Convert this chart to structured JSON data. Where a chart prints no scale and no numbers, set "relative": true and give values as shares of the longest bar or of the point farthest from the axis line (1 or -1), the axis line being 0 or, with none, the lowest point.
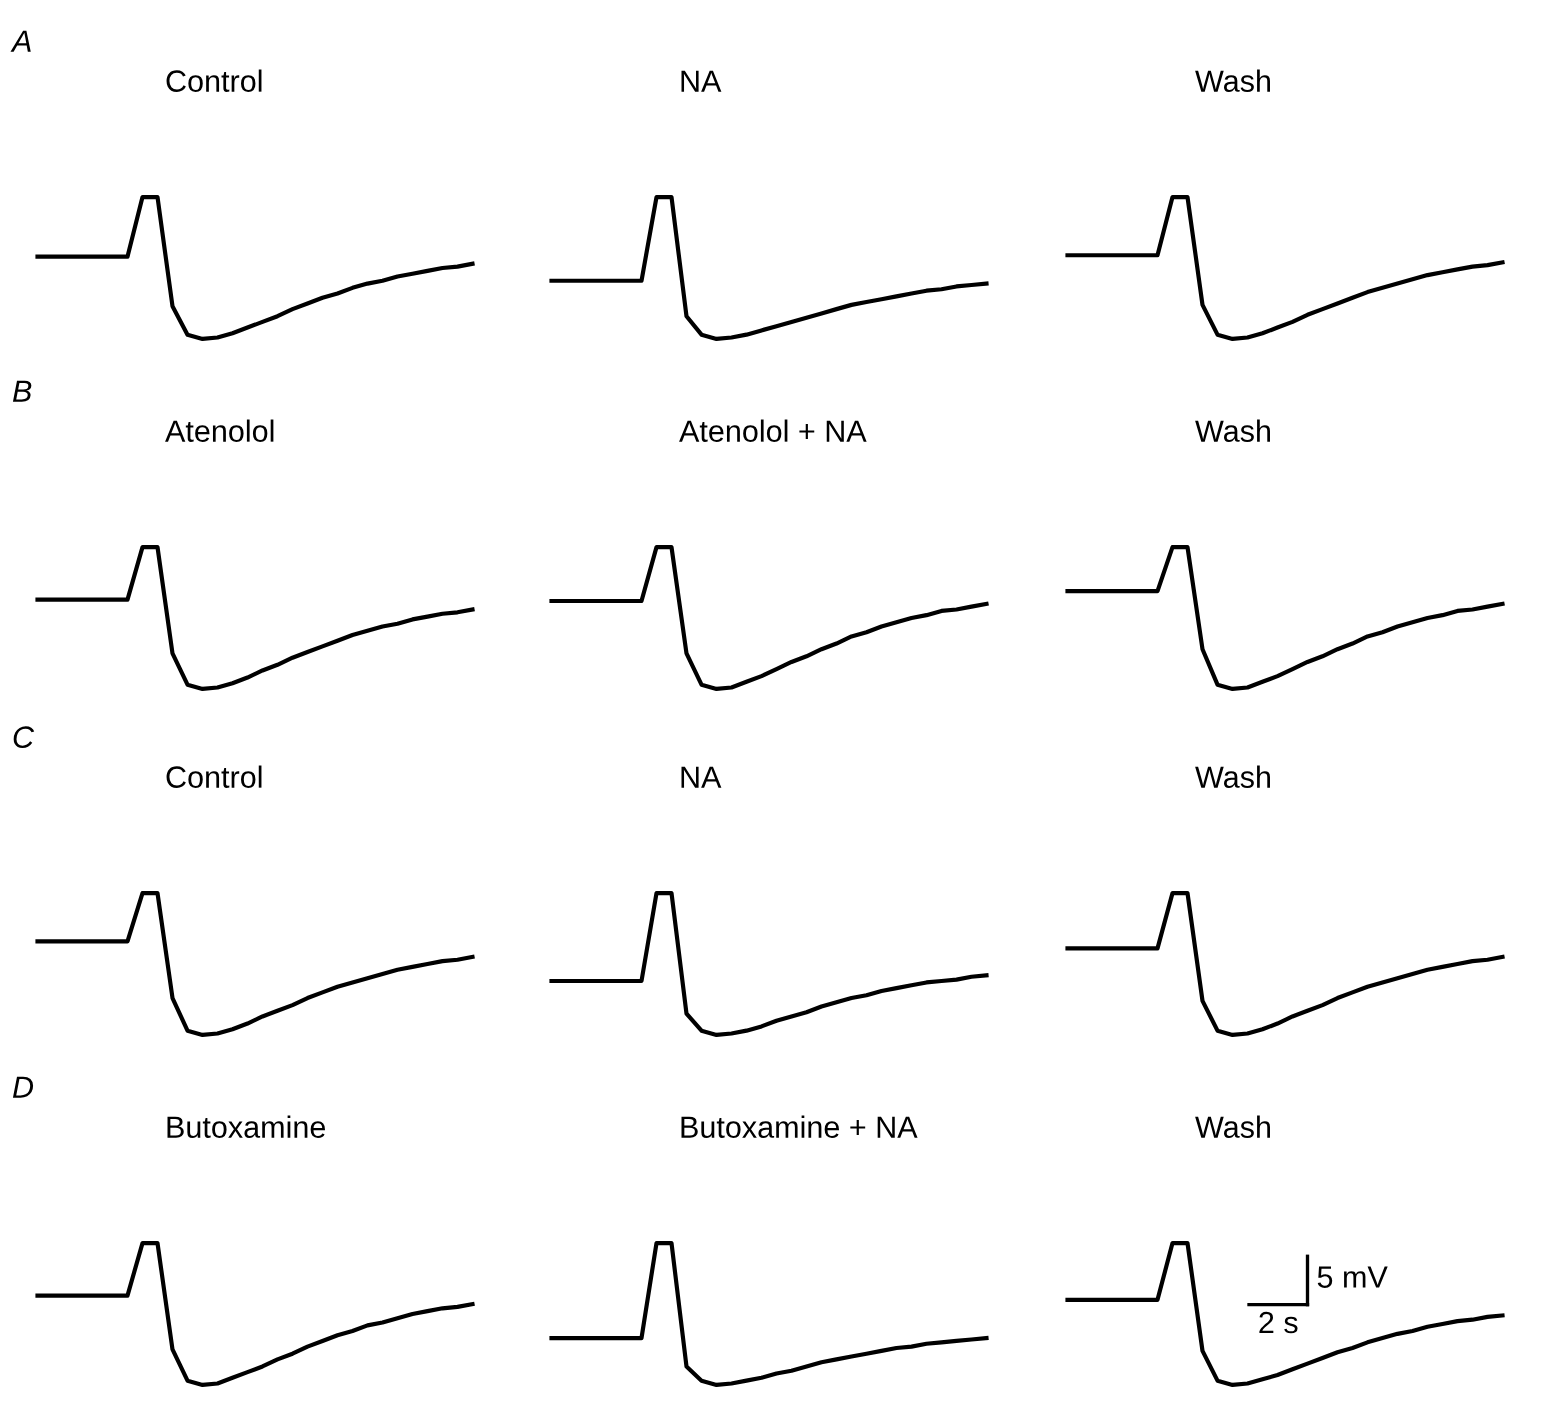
{
  "chart_data": [
    {
      "type": "line",
      "title": "Control",
      "annotations": [
        "A"
      ],
      "relative": true,
      "categories": [
        null,
        null,
        null,
        null,
        null,
        null,
        null,
        null,
        null,
        null,
        null,
        null,
        null,
        null,
        null,
        null,
        null,
        null,
        null,
        null,
        null,
        null,
        null,
        null,
        null,
        null,
        null,
        null,
        null,
        null
      ],
      "series": [
        {
          "color": "#000000",
          "values": [
            0.58,
            0.58,
            0.58,
            0.58,
            0.58,
            0.58,
            0.58,
            1,
            1,
            0.23,
            0.03,
            0,
            0.01,
            0.04,
            0.08,
            0.12,
            0.16,
            0.21,
            0.25,
            0.29,
            0.32,
            0.36,
            0.39,
            0.41,
            0.44,
            0.46,
            0.48,
            0.5,
            0.51,
            0.53
          ]
        }
      ]
    },
    {
      "type": "line",
      "title": "NA",
      "relative": true,
      "categories": [
        null,
        null,
        null,
        null,
        null,
        null,
        null,
        null,
        null,
        null,
        null,
        null,
        null,
        null,
        null,
        null,
        null,
        null,
        null,
        null,
        null,
        null,
        null,
        null,
        null,
        null,
        null,
        null,
        null,
        null
      ],
      "series": [
        {
          "color": "#000000",
          "values": [
            0.41,
            0.41,
            0.41,
            0.41,
            0.41,
            0.41,
            0.41,
            1,
            1,
            0.16,
            0.03,
            0,
            0.01,
            0.03,
            0.06,
            0.09,
            0.12,
            0.15,
            0.18,
            0.21,
            0.24,
            0.26,
            0.28,
            0.3,
            0.32,
            0.34,
            0.35,
            0.37,
            0.38,
            0.39
          ]
        }
      ]
    },
    {
      "type": "line",
      "title": "Wash",
      "relative": true,
      "categories": [
        null,
        null,
        null,
        null,
        null,
        null,
        null,
        null,
        null,
        null,
        null,
        null,
        null,
        null,
        null,
        null,
        null,
        null,
        null,
        null,
        null,
        null,
        null,
        null,
        null,
        null,
        null,
        null,
        null,
        null
      ],
      "series": [
        {
          "color": "#000000",
          "values": [
            0.59,
            0.59,
            0.59,
            0.59,
            0.59,
            0.59,
            0.59,
            1,
            1,
            0.24,
            0.03,
            0,
            0.01,
            0.04,
            0.08,
            0.12,
            0.17,
            0.21,
            0.25,
            0.29,
            0.33,
            0.36,
            0.39,
            0.42,
            0.45,
            0.47,
            0.49,
            0.51,
            0.52,
            0.54
          ]
        }
      ]
    },
    {
      "type": "line",
      "title": "Atenolol",
      "annotations": [
        "B"
      ],
      "relative": true,
      "categories": [
        null,
        null,
        null,
        null,
        null,
        null,
        null,
        null,
        null,
        null,
        null,
        null,
        null,
        null,
        null,
        null,
        null,
        null,
        null,
        null,
        null,
        null,
        null,
        null,
        null,
        null,
        null,
        null,
        null,
        null
      ],
      "series": [
        {
          "color": "#000000",
          "values": [
            0.63,
            0.63,
            0.63,
            0.63,
            0.63,
            0.63,
            0.63,
            1,
            1,
            0.25,
            0.03,
            0,
            0.01,
            0.04,
            0.08,
            0.13,
            0.17,
            0.22,
            0.26,
            0.3,
            0.34,
            0.38,
            0.41,
            0.44,
            0.46,
            0.49,
            0.51,
            0.53,
            0.54,
            0.56
          ]
        }
      ]
    },
    {
      "type": "line",
      "title": "Atenolol + NA",
      "relative": true,
      "categories": [
        null,
        null,
        null,
        null,
        null,
        null,
        null,
        null,
        null,
        null,
        null,
        null,
        null,
        null,
        null,
        null,
        null,
        null,
        null,
        null,
        null,
        null,
        null,
        null,
        null,
        null,
        null,
        null,
        null,
        null
      ],
      "series": [
        {
          "color": "#000000",
          "values": [
            0.62,
            0.62,
            0.62,
            0.62,
            0.62,
            0.62,
            0.62,
            1,
            1,
            0.25,
            0.03,
            0,
            0.01,
            0.05,
            0.09,
            0.14,
            0.19,
            0.23,
            0.28,
            0.32,
            0.37,
            0.4,
            0.44,
            0.47,
            0.5,
            0.52,
            0.55,
            0.56,
            0.58,
            0.6
          ]
        }
      ]
    },
    {
      "type": "line",
      "title": "Wash",
      "relative": true,
      "categories": [
        null,
        null,
        null,
        null,
        null,
        null,
        null,
        null,
        null,
        null,
        null,
        null,
        null,
        null,
        null,
        null,
        null,
        null,
        null,
        null,
        null,
        null,
        null,
        null,
        null,
        null,
        null,
        null,
        null,
        null
      ],
      "series": [
        {
          "color": "#000000",
          "values": [
            0.69,
            0.69,
            0.69,
            0.69,
            0.69,
            0.69,
            0.69,
            1,
            1,
            0.28,
            0.03,
            0,
            0.01,
            0.05,
            0.09,
            0.14,
            0.19,
            0.23,
            0.28,
            0.32,
            0.37,
            0.4,
            0.44,
            0.47,
            0.5,
            0.52,
            0.55,
            0.56,
            0.58,
            0.6
          ]
        }
      ]
    },
    {
      "type": "line",
      "title": "Control",
      "annotations": [
        "C"
      ],
      "relative": true,
      "categories": [
        null,
        null,
        null,
        null,
        null,
        null,
        null,
        null,
        null,
        null,
        null,
        null,
        null,
        null,
        null,
        null,
        null,
        null,
        null,
        null,
        null,
        null,
        null,
        null,
        null,
        null,
        null,
        null,
        null,
        null
      ],
      "series": [
        {
          "color": "#000000",
          "values": [
            0.66,
            0.66,
            0.66,
            0.66,
            0.66,
            0.66,
            0.66,
            1,
            1,
            0.26,
            0.03,
            0,
            0.01,
            0.04,
            0.08,
            0.13,
            0.17,
            0.21,
            0.26,
            0.3,
            0.34,
            0.37,
            0.4,
            0.43,
            0.46,
            0.48,
            0.5,
            0.52,
            0.53,
            0.55
          ]
        }
      ]
    },
    {
      "type": "line",
      "title": "NA",
      "relative": true,
      "categories": [
        null,
        null,
        null,
        null,
        null,
        null,
        null,
        null,
        null,
        null,
        null,
        null,
        null,
        null,
        null,
        null,
        null,
        null,
        null,
        null,
        null,
        null,
        null,
        null,
        null,
        null,
        null,
        null,
        null,
        null
      ],
      "series": [
        {
          "color": "#000000",
          "values": [
            0.38,
            0.38,
            0.38,
            0.38,
            0.38,
            0.38,
            0.38,
            1,
            1,
            0.15,
            0.03,
            0,
            0.01,
            0.03,
            0.06,
            0.1,
            0.13,
            0.16,
            0.2,
            0.23,
            0.26,
            0.28,
            0.31,
            0.33,
            0.35,
            0.37,
            0.38,
            0.39,
            0.41,
            0.42
          ]
        }
      ]
    },
    {
      "type": "line",
      "title": "Wash",
      "relative": true,
      "categories": [
        null,
        null,
        null,
        null,
        null,
        null,
        null,
        null,
        null,
        null,
        null,
        null,
        null,
        null,
        null,
        null,
        null,
        null,
        null,
        null,
        null,
        null,
        null,
        null,
        null,
        null,
        null,
        null,
        null,
        null
      ],
      "series": [
        {
          "color": "#000000",
          "values": [
            0.61,
            0.61,
            0.61,
            0.61,
            0.61,
            0.61,
            0.61,
            1,
            1,
            0.24,
            0.03,
            0,
            0.01,
            0.04,
            0.08,
            0.13,
            0.17,
            0.21,
            0.26,
            0.3,
            0.34,
            0.37,
            0.4,
            0.43,
            0.46,
            0.48,
            0.5,
            0.52,
            0.53,
            0.55
          ]
        }
      ]
    },
    {
      "type": "line",
      "title": "Butoxamine",
      "annotations": [
        "D"
      ],
      "relative": true,
      "categories": [
        null,
        null,
        null,
        null,
        null,
        null,
        null,
        null,
        null,
        null,
        null,
        null,
        null,
        null,
        null,
        null,
        null,
        null,
        null,
        null,
        null,
        null,
        null,
        null,
        null,
        null,
        null,
        null,
        null,
        null
      ],
      "series": [
        {
          "color": "#000000",
          "values": [
            0.63,
            0.63,
            0.63,
            0.63,
            0.63,
            0.63,
            0.63,
            1,
            1,
            0.25,
            0.03,
            0,
            0.01,
            0.05,
            0.09,
            0.13,
            0.18,
            0.22,
            0.27,
            0.31,
            0.35,
            0.38,
            0.42,
            0.44,
            0.47,
            0.5,
            0.52,
            0.54,
            0.55,
            0.57
          ]
        }
      ]
    },
    {
      "type": "line",
      "title": "Butoxamine + NA",
      "relative": true,
      "categories": [
        null,
        null,
        null,
        null,
        null,
        null,
        null,
        null,
        null,
        null,
        null,
        null,
        null,
        null,
        null,
        null,
        null,
        null,
        null,
        null,
        null,
        null,
        null,
        null,
        null,
        null,
        null,
        null,
        null,
        null
      ],
      "series": [
        {
          "color": "#000000",
          "values": [
            0.33,
            0.33,
            0.33,
            0.33,
            0.33,
            0.33,
            0.33,
            1,
            1,
            0.13,
            0.03,
            0,
            0.01,
            0.03,
            0.05,
            0.08,
            0.1,
            0.13,
            0.16,
            0.18,
            0.2,
            0.22,
            0.24,
            0.26,
            0.27,
            0.29,
            0.3,
            0.31,
            0.32,
            0.33
          ]
        }
      ]
    },
    {
      "type": "line",
      "title": "Wash",
      "annotations": [
        "5 mV",
        "2 s"
      ],
      "relative": true,
      "categories": [
        null,
        null,
        null,
        null,
        null,
        null,
        null,
        null,
        null,
        null,
        null,
        null,
        null,
        null,
        null,
        null,
        null,
        null,
        null,
        null,
        null,
        null,
        null,
        null,
        null,
        null,
        null,
        null,
        null,
        null
      ],
      "series": [
        {
          "color": "#000000",
          "values": [
            0.6,
            0.6,
            0.6,
            0.6,
            0.6,
            0.6,
            0.6,
            1,
            1,
            0.24,
            0.03,
            0,
            0.01,
            0.04,
            0.07,
            0.11,
            0.15,
            0.19,
            0.23,
            0.26,
            0.3,
            0.33,
            0.36,
            0.38,
            0.41,
            0.43,
            0.45,
            0.46,
            0.48,
            0.49
          ]
        }
      ]
    }
  ]
}
